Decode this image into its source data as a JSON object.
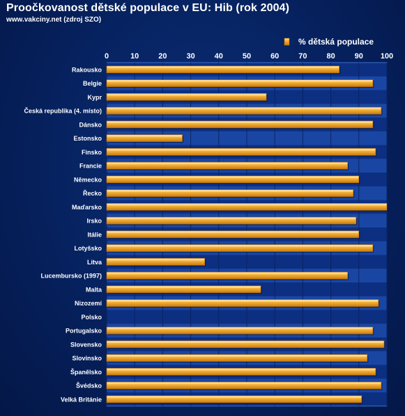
{
  "header": {
    "title": "Proočkovanost dětské populace v EU: Hib (rok 2004)",
    "subtitle": "www.vakciny.net (zdroj SZO)"
  },
  "colors": {
    "background": "#06215e",
    "plot_band_dark": "#0c2f82",
    "plot_band_light": "#1a46a3",
    "bar_fill": "#f3a92b",
    "bar_highlight": "#ffe0a0",
    "bar_shadow": "#b66c07",
    "text": "#ffffff"
  },
  "chart_data": {
    "type": "bar",
    "orientation": "horizontal",
    "legend": {
      "position": "top-right",
      "entries": [
        "% dětská populace"
      ]
    },
    "grid": true,
    "xlim": [
      0,
      100
    ],
    "x_ticks": [
      0,
      10,
      20,
      30,
      40,
      50,
      60,
      70,
      80,
      90,
      100
    ],
    "categories": [
      "Rakousko",
      "Belgie",
      "Kypr",
      "Česká republika (4. místo)",
      "Dánsko",
      "Estonsko",
      "Finsko",
      "Francie",
      "Německo",
      "Řecko",
      "Maďarsko",
      "Irsko",
      "Itálie",
      "Lotyšsko",
      "Litva",
      "Lucembursko (1997)",
      "Malta",
      "Nizozemí",
      "Polsko",
      "Portugalsko",
      "Slovensko",
      "Slovinsko",
      "Španělsko",
      "Švédsko",
      "Velká Británie"
    ],
    "series": [
      {
        "name": "% dětská populace",
        "values": [
          83,
          95,
          57,
          98,
          95,
          27,
          96,
          86,
          90,
          88,
          100,
          89,
          90,
          95,
          35,
          86,
          55,
          97,
          null,
          95,
          99,
          93,
          96,
          98,
          91
        ]
      }
    ]
  }
}
